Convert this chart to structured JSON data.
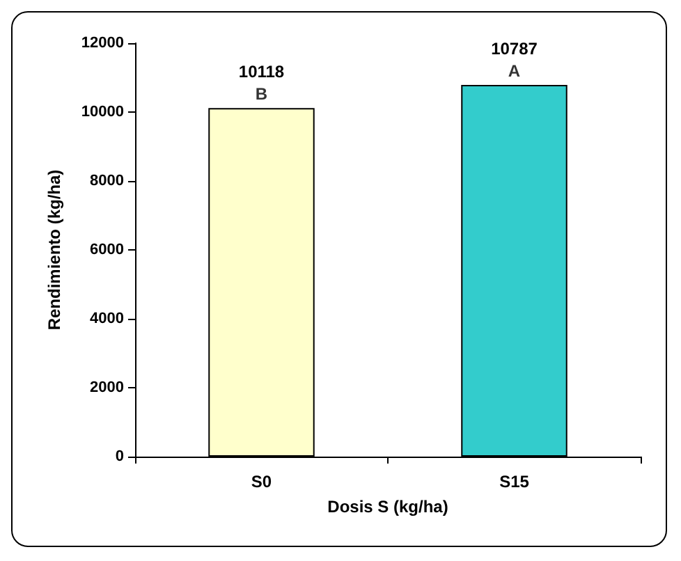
{
  "chart_data": {
    "type": "bar",
    "xlabel": "Dosis S (kg/ha)",
    "ylabel": "Rendimiento (kg/ha)",
    "categories": [
      "S0",
      "S15"
    ],
    "values": [
      10118,
      10787
    ],
    "colors": [
      "#ffffcc",
      "#33cccc"
    ],
    "ylim": [
      0,
      12000
    ],
    "yticks": [
      0,
      2000,
      4000,
      6000,
      8000,
      10000,
      12000
    ],
    "grid": false,
    "data_labels": true,
    "annotations": [
      {
        "text": "B",
        "x": "S0",
        "y": 10118
      },
      {
        "text": "A",
        "x": "S15",
        "y": 10787
      }
    ]
  }
}
